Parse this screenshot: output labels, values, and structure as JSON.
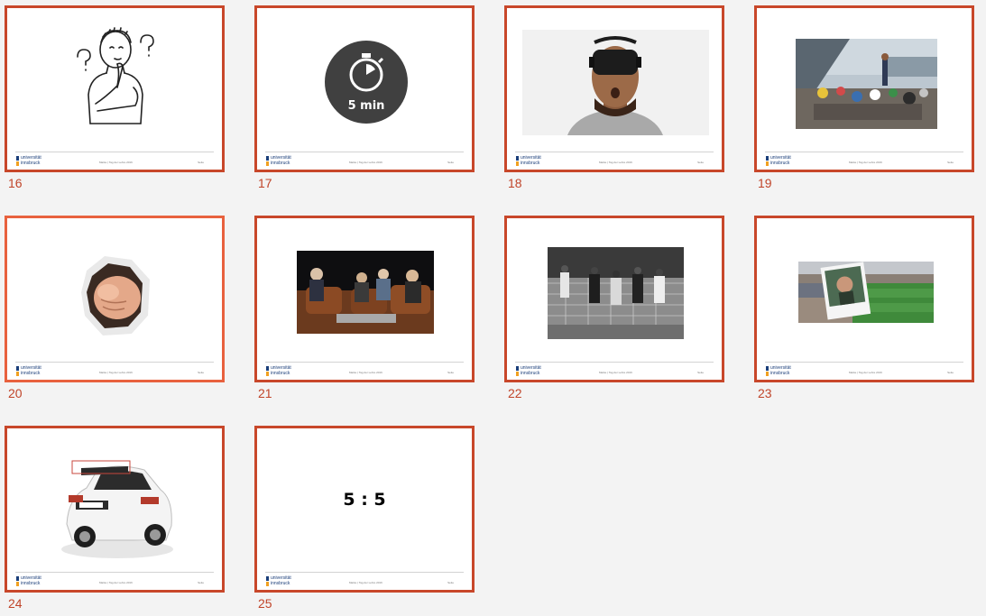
{
  "logo": {
    "line1": "universität",
    "line2": "innsbruck"
  },
  "footer": {
    "center": "Marke  |  Tag der Lehre 2016",
    "right": "Seite"
  },
  "icons": {
    "thinking": "thinking-person-icon",
    "stopwatch": "stopwatch-icon"
  },
  "slides": [
    {
      "number": "16",
      "content": "thinking-person-drawing"
    },
    {
      "number": "17",
      "content": "stopwatch",
      "timer_label": "5 min"
    },
    {
      "number": "18",
      "content": "vr-headset-photo"
    },
    {
      "number": "19",
      "content": "group-outdoor-photo"
    },
    {
      "number": "20",
      "content": "pointing-fist-photo",
      "selected": true
    },
    {
      "number": "21",
      "content": "talk-show-photo"
    },
    {
      "number": "22",
      "content": "football-bw-photo"
    },
    {
      "number": "23",
      "content": "stadium-polaroid-photo"
    },
    {
      "number": "24",
      "content": "white-car-photo"
    },
    {
      "number": "25",
      "content": "score-text",
      "score": "5 : 5"
    }
  ],
  "colors": {
    "slide_border": "#c8472a",
    "selected_border": "#e8613e",
    "number_color": "#c0452a",
    "background": "#f3f3f3"
  }
}
